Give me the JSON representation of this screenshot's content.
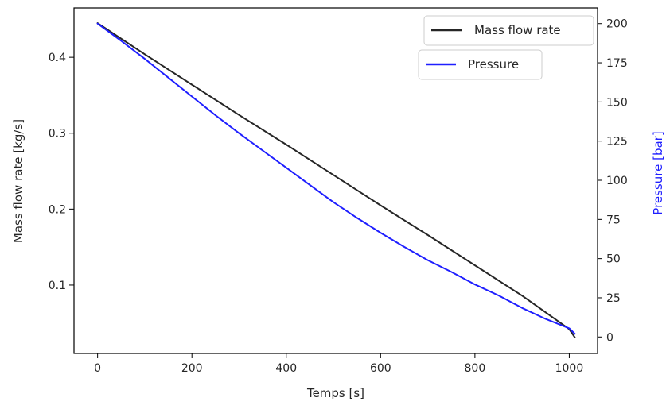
{
  "chart_data": {
    "type": "line",
    "xlabel": "Temps [s]",
    "ylabel_left": "Mass flow rate [kg/s]",
    "ylabel_right": "Pressure [bar]",
    "xlim": [
      -50,
      1060
    ],
    "ylim_left": [
      0.01,
      0.465
    ],
    "ylim_right": [
      -10.5,
      210
    ],
    "xticks": [
      0,
      200,
      400,
      600,
      800,
      1000
    ],
    "yticks_left": [
      0.1,
      0.2,
      0.3,
      0.4
    ],
    "yticks_right": [
      0,
      25,
      50,
      75,
      100,
      125,
      150,
      175,
      200
    ],
    "grid": false,
    "series": [
      {
        "name": "Mass flow rate",
        "axis": "left",
        "color": "#262626",
        "x": [
          0,
          100,
          200,
          300,
          400,
          500,
          600,
          700,
          800,
          900,
          1000,
          1012
        ],
        "y": [
          0.445,
          0.404,
          0.364,
          0.324,
          0.285,
          0.245,
          0.205,
          0.166,
          0.126,
          0.086,
          0.042,
          0.031
        ]
      },
      {
        "name": "Pressure",
        "axis": "right",
        "color": "#1f1fff",
        "x": [
          0,
          50,
          100,
          150,
          200,
          250,
          300,
          350,
          400,
          450,
          500,
          550,
          600,
          650,
          700,
          750,
          800,
          850,
          900,
          950,
          1000,
          1012
        ],
        "y": [
          200,
          189,
          177.5,
          165.5,
          153.5,
          141.5,
          130,
          119,
          108,
          97,
          86,
          76,
          66.5,
          57.5,
          49,
          41.5,
          33.5,
          26.5,
          18.5,
          11.5,
          5.5,
          2
        ]
      }
    ],
    "legend": [
      {
        "label": "Mass flow rate",
        "color": "#262626",
        "placement": "top-right"
      },
      {
        "label": "Pressure",
        "color": "#1f1fff",
        "placement": "upper-right-below"
      }
    ],
    "colors": {
      "right_axis_label": "#1f1fff",
      "axis": "#000000"
    }
  }
}
